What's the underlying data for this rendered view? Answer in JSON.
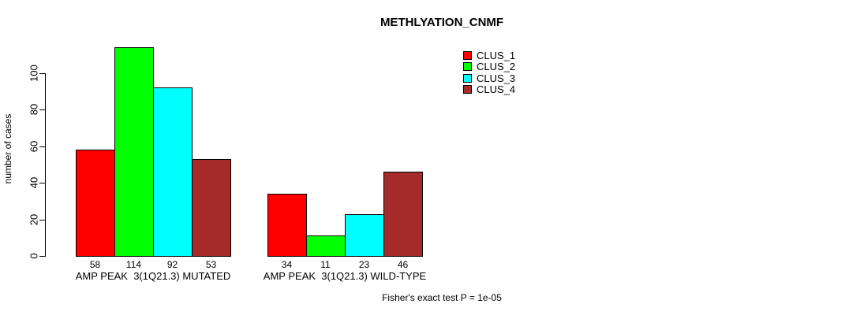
{
  "title": "METHLYATION_CNMF",
  "ylabel": "number of cases",
  "footer": "Fisher's exact test P = 1e-05",
  "chart_data": {
    "type": "bar",
    "title": "METHLYATION_CNMF",
    "xlabel": "",
    "ylabel": "number of cases",
    "ylim": [
      0,
      114
    ],
    "yticks": [
      0,
      20,
      40,
      60,
      80,
      100
    ],
    "grid": false,
    "legend_position": "top-right",
    "categories": [
      "AMP PEAK  3(1Q21.3) MUTATED",
      "AMP PEAK  3(1Q21.3) WILD-TYPE"
    ],
    "series": [
      {
        "name": "CLUS_1",
        "color": "#FF0000",
        "values": [
          58,
          34
        ]
      },
      {
        "name": "CLUS_2",
        "color": "#00FF00",
        "values": [
          114,
          11
        ]
      },
      {
        "name": "CLUS_3",
        "color": "#00FFFF",
        "values": [
          92,
          23
        ]
      },
      {
        "name": "CLUS_4",
        "color": "#A52A2A",
        "values": [
          53,
          46
        ]
      }
    ],
    "groups": [
      {
        "label": "AMP PEAK  3(1Q21.3) MUTATED",
        "values": [
          58,
          114,
          92,
          53
        ]
      },
      {
        "label": "AMP PEAK  3(1Q21.3) WILD-TYPE",
        "values": [
          34,
          11,
          23,
          46
        ]
      }
    ],
    "bar_labels_shown": true,
    "annotation": "Fisher's exact test P = 1e-05"
  }
}
